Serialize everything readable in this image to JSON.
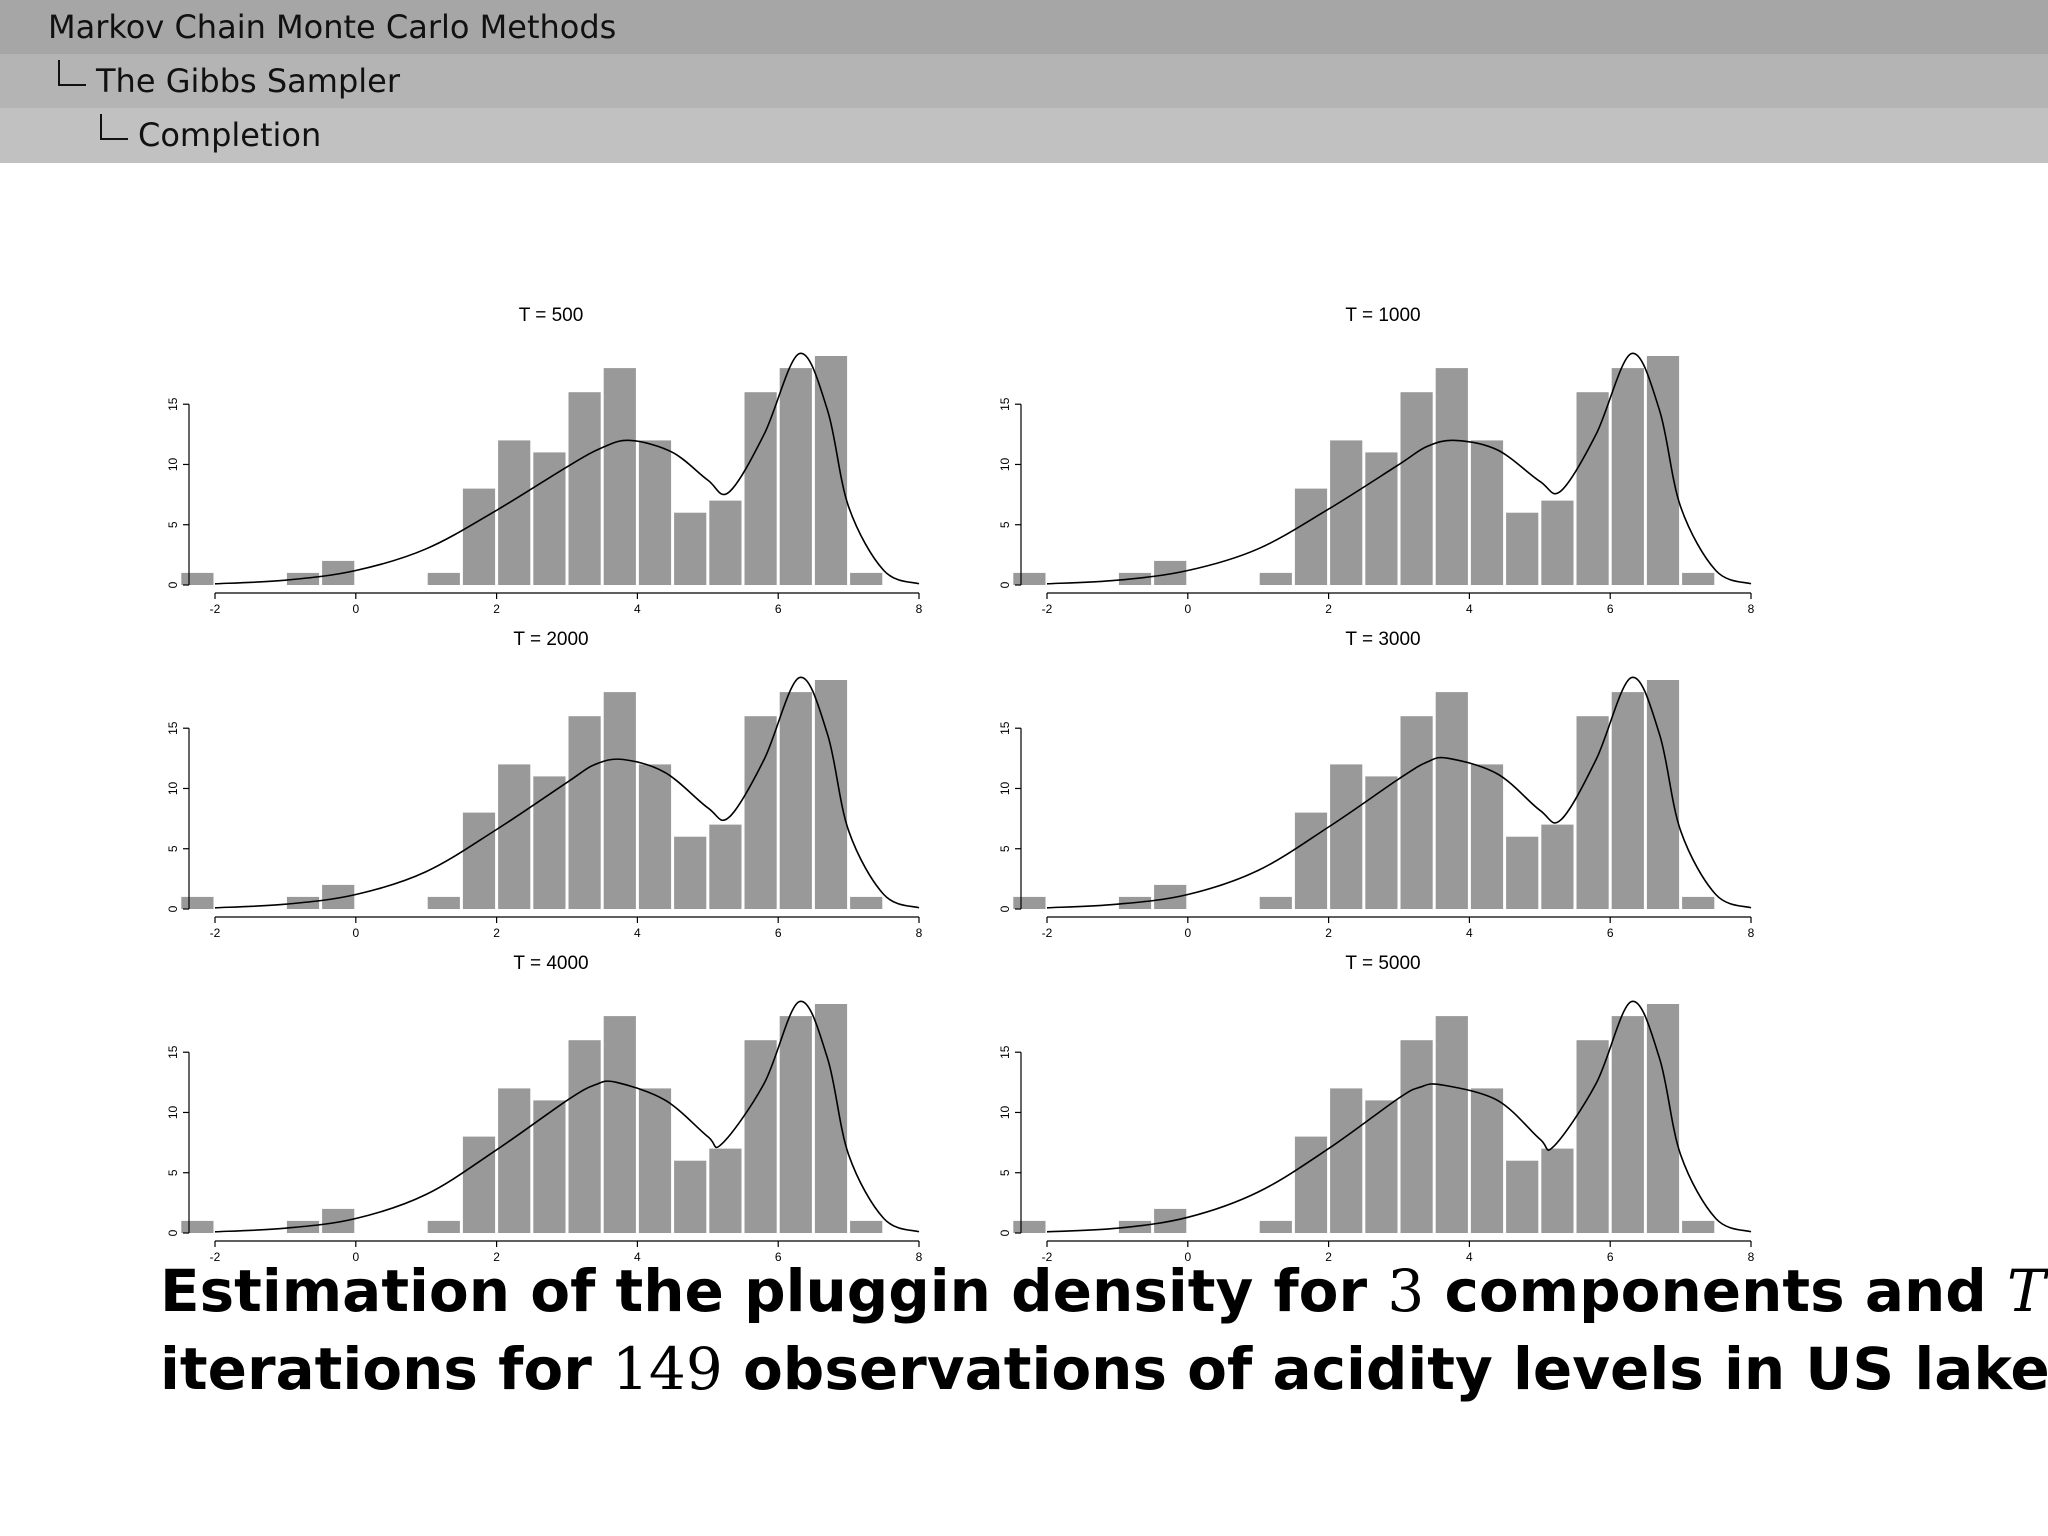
{
  "header": {
    "section": "Markov Chain Monte Carlo Methods",
    "subsection": "The Gibbs Sampler",
    "subsubsection": "Completion"
  },
  "caption": {
    "line1_a": "Estimation of the pluggin density for",
    "line1_num": "3",
    "line1_b": "components and",
    "line1_var": "T",
    "line2_a": "iterations for",
    "line2_num": "149",
    "line2_b": "observations of acidity levels in US lakes"
  },
  "chart_data": [
    {
      "type": "bar",
      "title": "T = 500",
      "bin_edges": [
        -2.5,
        -2.0,
        -1.5,
        -1.0,
        -0.5,
        0.0,
        0.5,
        1.0,
        1.5,
        2.0,
        2.5,
        3.0,
        3.5,
        4.0,
        4.5,
        5.0,
        5.5,
        6.0,
        6.5,
        7.0,
        7.5
      ],
      "values": [
        1,
        0,
        0,
        1,
        2,
        0,
        0,
        1,
        8,
        12,
        11,
        16,
        18,
        12,
        6,
        7,
        16,
        18,
        19,
        1
      ],
      "xlim": [
        -2,
        8
      ],
      "ylim": [
        0,
        19
      ],
      "xticks": [
        -2,
        0,
        2,
        4,
        6,
        8
      ],
      "yticks": [
        0,
        5,
        10,
        15
      ],
      "density_curve": {
        "x": [
          -2,
          -1,
          0,
          1,
          2,
          3,
          3.5,
          3.9,
          4.5,
          5.0,
          5.3,
          5.8,
          6.3,
          6.7,
          7.0,
          7.5,
          8.0
        ],
        "y": [
          0.1,
          0.4,
          1.2,
          3.0,
          6.2,
          9.8,
          11.4,
          12.0,
          11.0,
          8.7,
          7.7,
          12.5,
          19.2,
          14.5,
          6.5,
          1.2,
          0.1
        ]
      },
      "color": "#999999"
    },
    {
      "type": "bar",
      "title": "T = 1000",
      "bin_edges": [
        -2.5,
        -2.0,
        -1.5,
        -1.0,
        -0.5,
        0.0,
        0.5,
        1.0,
        1.5,
        2.0,
        2.5,
        3.0,
        3.5,
        4.0,
        4.5,
        5.0,
        5.5,
        6.0,
        6.5,
        7.0,
        7.5
      ],
      "values": [
        1,
        0,
        0,
        1,
        2,
        0,
        0,
        1,
        8,
        12,
        11,
        16,
        18,
        12,
        6,
        7,
        16,
        18,
        19,
        1
      ],
      "xlim": [
        -2,
        8
      ],
      "ylim": [
        0,
        19
      ],
      "xticks": [
        -2,
        0,
        2,
        4,
        6,
        8
      ],
      "yticks": [
        0,
        5,
        10,
        15
      ],
      "density_curve": {
        "x": [
          -2,
          -1,
          0,
          1,
          2,
          3,
          3.4,
          3.8,
          4.4,
          5.0,
          5.3,
          5.8,
          6.3,
          6.7,
          7.0,
          7.5,
          8.0
        ],
        "y": [
          0.1,
          0.4,
          1.2,
          3.0,
          6.3,
          10.0,
          11.5,
          12.0,
          11.2,
          8.6,
          7.8,
          12.5,
          19.2,
          14.5,
          6.5,
          1.2,
          0.1
        ]
      },
      "color": "#999999"
    },
    {
      "type": "bar",
      "title": "T = 2000",
      "bin_edges": [
        -2.5,
        -2.0,
        -1.5,
        -1.0,
        -0.5,
        0.0,
        0.5,
        1.0,
        1.5,
        2.0,
        2.5,
        3.0,
        3.5,
        4.0,
        4.5,
        5.0,
        5.5,
        6.0,
        6.5,
        7.0,
        7.5
      ],
      "values": [
        1,
        0,
        0,
        1,
        2,
        0,
        0,
        1,
        8,
        12,
        11,
        16,
        18,
        12,
        6,
        7,
        16,
        18,
        19,
        1
      ],
      "xlim": [
        -2,
        8
      ],
      "ylim": [
        0,
        19
      ],
      "xticks": [
        -2,
        0,
        2,
        4,
        6,
        8
      ],
      "yticks": [
        0,
        5,
        10,
        15
      ],
      "density_curve": {
        "x": [
          -2,
          -1,
          0,
          1,
          2,
          3,
          3.4,
          3.8,
          4.4,
          5.0,
          5.3,
          5.8,
          6.3,
          6.7,
          7.0,
          7.5,
          8.0
        ],
        "y": [
          0.1,
          0.4,
          1.2,
          3.1,
          6.6,
          10.5,
          12.0,
          12.4,
          11.3,
          8.4,
          7.6,
          12.4,
          19.2,
          14.5,
          6.5,
          1.2,
          0.1
        ]
      },
      "color": "#999999"
    },
    {
      "type": "bar",
      "title": "T = 3000",
      "bin_edges": [
        -2.5,
        -2.0,
        -1.5,
        -1.0,
        -0.5,
        0.0,
        0.5,
        1.0,
        1.5,
        2.0,
        2.5,
        3.0,
        3.5,
        4.0,
        4.5,
        5.0,
        5.5,
        6.0,
        6.5,
        7.0,
        7.5
      ],
      "values": [
        1,
        0,
        0,
        1,
        2,
        0,
        0,
        1,
        8,
        12,
        11,
        16,
        18,
        12,
        6,
        7,
        16,
        18,
        19,
        1
      ],
      "xlim": [
        -2,
        8
      ],
      "ylim": [
        0,
        19
      ],
      "xticks": [
        -2,
        0,
        2,
        4,
        6,
        8
      ],
      "yticks": [
        0,
        5,
        10,
        15
      ],
      "density_curve": {
        "x": [
          -2,
          -1,
          0,
          1,
          2,
          3,
          3.4,
          3.7,
          4.4,
          5.0,
          5.3,
          5.8,
          6.3,
          6.7,
          7.0,
          7.5,
          8.0
        ],
        "y": [
          0.1,
          0.4,
          1.2,
          3.2,
          6.8,
          10.8,
          12.2,
          12.5,
          11.2,
          8.2,
          7.4,
          12.4,
          19.2,
          14.5,
          6.5,
          1.2,
          0.1
        ]
      },
      "color": "#999999"
    },
    {
      "type": "bar",
      "title": "T = 4000",
      "bin_edges": [
        -2.5,
        -2.0,
        -1.5,
        -1.0,
        -0.5,
        0.0,
        0.5,
        1.0,
        1.5,
        2.0,
        2.5,
        3.0,
        3.5,
        4.0,
        4.5,
        5.0,
        5.5,
        6.0,
        6.5,
        7.0,
        7.5
      ],
      "values": [
        1,
        0,
        0,
        1,
        2,
        0,
        0,
        1,
        8,
        12,
        11,
        16,
        18,
        12,
        6,
        7,
        16,
        18,
        19,
        1
      ],
      "xlim": [
        -2,
        8
      ],
      "ylim": [
        0,
        19
      ],
      "xticks": [
        -2,
        0,
        2,
        4,
        6,
        8
      ],
      "yticks": [
        0,
        5,
        10,
        15
      ],
      "density_curve": {
        "x": [
          -2,
          -1,
          0,
          1,
          2,
          3,
          3.4,
          3.7,
          4.4,
          5.0,
          5.2,
          5.8,
          6.3,
          6.7,
          7.0,
          7.5,
          8.0
        ],
        "y": [
          0.1,
          0.4,
          1.2,
          3.2,
          6.9,
          11.0,
          12.3,
          12.5,
          11.0,
          8.0,
          7.4,
          12.4,
          19.2,
          14.5,
          6.5,
          1.2,
          0.1
        ]
      },
      "color": "#999999"
    },
    {
      "type": "bar",
      "title": "T = 5000",
      "bin_edges": [
        -2.5,
        -2.0,
        -1.5,
        -1.0,
        -0.5,
        0.0,
        0.5,
        1.0,
        1.5,
        2.0,
        2.5,
        3.0,
        3.5,
        4.0,
        4.5,
        5.0,
        5.5,
        6.0,
        6.5,
        7.0,
        7.5
      ],
      "values": [
        1,
        0,
        0,
        1,
        2,
        0,
        0,
        1,
        8,
        12,
        11,
        16,
        18,
        12,
        6,
        7,
        16,
        18,
        19,
        1
      ],
      "xlim": [
        -2,
        8
      ],
      "ylim": [
        0,
        19
      ],
      "xticks": [
        -2,
        0,
        2,
        4,
        6,
        8
      ],
      "yticks": [
        0,
        5,
        10,
        15
      ],
      "density_curve": {
        "x": [
          -2,
          -1,
          0,
          1,
          2,
          3,
          3.3,
          3.6,
          4.4,
          5.0,
          5.2,
          5.8,
          6.3,
          6.7,
          7.0,
          7.5,
          8.0
        ],
        "y": [
          0.1,
          0.4,
          1.3,
          3.4,
          7.0,
          11.2,
          12.1,
          12.3,
          11.0,
          7.8,
          7.2,
          12.4,
          19.2,
          14.5,
          6.5,
          1.2,
          0.1
        ]
      },
      "color": "#999999"
    }
  ]
}
